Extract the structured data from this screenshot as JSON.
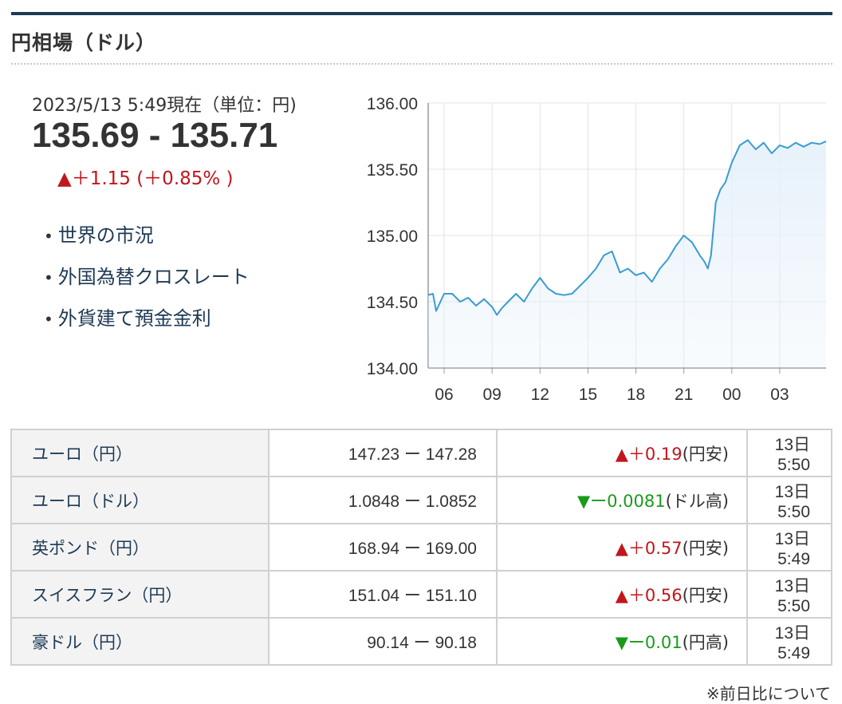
{
  "section": {
    "title": "円相場（ドル）"
  },
  "summary": {
    "as_of": "2023/5/13 5:49現在（単位：円)",
    "price": "135.69 - 135.71",
    "change": "▲＋1.15 (＋0.85% )"
  },
  "links": [
    "世界の市況",
    "外国為替クロスレート",
    "外貨建て預金金利"
  ],
  "chart_data": {
    "type": "area",
    "yticks": [
      "136.00",
      "135.50",
      "135.00",
      "134.50",
      "134.00"
    ],
    "xticks": [
      "06",
      "09",
      "12",
      "15",
      "18",
      "21",
      "00",
      "03"
    ],
    "ylim": [
      134.0,
      136.0
    ],
    "grid": true,
    "x": [
      5.0,
      5.3,
      5.5,
      6.0,
      6.5,
      7.0,
      7.5,
      8.0,
      8.5,
      9.0,
      9.3,
      9.6,
      10.0,
      10.5,
      11.0,
      11.5,
      12.0,
      12.5,
      13.0,
      13.5,
      14.0,
      14.5,
      15.0,
      15.5,
      16.0,
      16.5,
      17.0,
      17.5,
      18.0,
      18.5,
      19.0,
      19.5,
      20.0,
      20.5,
      21.0,
      21.5,
      22.0,
      22.3,
      22.5,
      22.7,
      23.0,
      23.3,
      23.6,
      24.0,
      24.5,
      25.0,
      25.5,
      26.0,
      26.5,
      27.0,
      27.5,
      28.0,
      28.5,
      29.0,
      29.5,
      29.9
    ],
    "values": [
      134.55,
      134.56,
      134.43,
      134.56,
      134.56,
      134.5,
      134.53,
      134.47,
      134.52,
      134.46,
      134.4,
      134.45,
      134.5,
      134.56,
      134.5,
      134.6,
      134.68,
      134.6,
      134.56,
      134.55,
      134.56,
      134.62,
      134.68,
      134.75,
      134.85,
      134.88,
      134.72,
      134.75,
      134.7,
      134.72,
      134.65,
      134.75,
      134.82,
      134.92,
      135.0,
      134.95,
      134.85,
      134.8,
      134.75,
      134.85,
      135.25,
      135.35,
      135.4,
      135.55,
      135.68,
      135.72,
      135.65,
      135.7,
      135.62,
      135.68,
      135.66,
      135.7,
      135.67,
      135.7,
      135.69,
      135.71
    ],
    "colors": {
      "line": "#3b9bd3",
      "fill": "#e6f1fa"
    }
  },
  "rates": [
    {
      "name": "ユーロ（円）",
      "quote": "147.23 ー 147.28",
      "arrow": "▲",
      "diff": "＋0.19",
      "note": "(円安)",
      "dir": "up",
      "time": "13日 5:50"
    },
    {
      "name": "ユーロ（ドル）",
      "quote": "1.0848 ー 1.0852",
      "arrow": "▼",
      "diff": "ー0.0081",
      "note": "(ドル高)",
      "dir": "down",
      "time": "13日 5:50"
    },
    {
      "name": "英ポンド（円）",
      "quote": "168.94 ー 169.00",
      "arrow": "▲",
      "diff": "＋0.57",
      "note": "(円安)",
      "dir": "up",
      "time": "13日 5:49"
    },
    {
      "name": "スイスフラン（円）",
      "quote": "151.04 ー 151.10",
      "arrow": "▲",
      "diff": "＋0.56",
      "note": "(円安)",
      "dir": "up",
      "time": "13日 5:50"
    },
    {
      "name": "豪ドル（円）",
      "quote": "90.14 ー 90.18",
      "arrow": "▼",
      "diff": "ー0.01",
      "note": "(円高)",
      "dir": "down",
      "time": "13日 5:49"
    }
  ],
  "footnote": "※前日比について"
}
